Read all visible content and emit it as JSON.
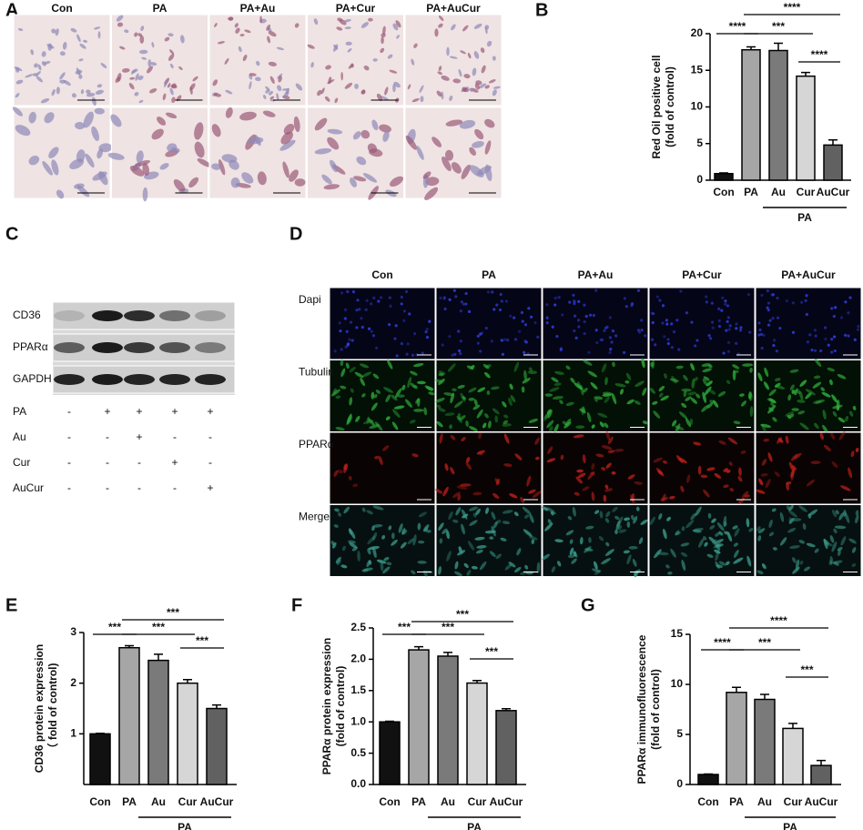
{
  "panels": {
    "A": {
      "letter": "A",
      "columns": [
        "Con",
        "PA",
        "PA+Au",
        "PA+Cur",
        "PA+AuCur"
      ]
    },
    "B": {
      "letter": "B"
    },
    "C": {
      "letter": "C",
      "proteins": [
        "CD36",
        "PPARα",
        "GAPDH"
      ],
      "treatments": [
        {
          "name": "PA",
          "marks": [
            "-",
            "+",
            "+",
            "+",
            "+"
          ]
        },
        {
          "name": "Au",
          "marks": [
            "-",
            "-",
            "+",
            "-",
            "-"
          ]
        },
        {
          "name": "Cur",
          "marks": [
            "-",
            "-",
            "-",
            "+",
            "-"
          ]
        },
        {
          "name": "AuCur",
          "marks": [
            "-",
            "-",
            "-",
            "-",
            "+"
          ]
        }
      ]
    },
    "D": {
      "letter": "D",
      "columns": [
        "Con",
        "PA",
        "PA+Au",
        "PA+Cur",
        "PA+AuCur"
      ],
      "rows": [
        "Dapi",
        "Tubulin",
        "PPARα",
        "Merge"
      ]
    },
    "E": {
      "letter": "E"
    },
    "F": {
      "letter": "F"
    },
    "G": {
      "letter": "G"
    }
  },
  "chart_data": [
    {
      "type": "bar",
      "ylabel": [
        "Red Oil positive cell",
        "(fold of control)"
      ],
      "categories": [
        "Con",
        "PA",
        "Au",
        "Cur",
        "AuCur"
      ],
      "values": [
        0.9,
        17.8,
        17.7,
        14.2,
        4.8
      ],
      "errors": [
        0.1,
        0.4,
        1.0,
        0.5,
        0.7
      ],
      "colors": [
        "#111111",
        "#a6a6a6",
        "#7a7a7a",
        "#d6d6d6",
        "#616161"
      ],
      "ylim": [
        0,
        20
      ],
      "yticks": [
        0,
        5,
        10,
        15,
        20
      ],
      "group_label": "PA",
      "significance": [
        "****",
        "***",
        "****",
        "****"
      ]
    },
    {
      "type": "bar",
      "ylabel": [
        "CD36 protein expression",
        "（ fold of control)"
      ],
      "categories": [
        "Con",
        "PA",
        "Au",
        "Cur",
        "AuCur"
      ],
      "values": [
        1,
        2.7,
        2.45,
        2.0,
        1.5
      ],
      "errors": [
        0.01,
        0.04,
        0.12,
        0.07,
        0.07
      ],
      "colors": [
        "#111111",
        "#a6a6a6",
        "#7a7a7a",
        "#d6d6d6",
        "#616161"
      ],
      "ylim": [
        0,
        3
      ],
      "yticks": [
        1,
        2,
        3
      ],
      "group_label": "PA",
      "significance": [
        "***",
        "***",
        "***",
        "***"
      ]
    },
    {
      "type": "bar",
      "ylabel": [
        "PPARα protein expression",
        "(fold of control)"
      ],
      "categories": [
        "Con",
        "PA",
        "Au",
        "Cur",
        "AuCur"
      ],
      "values": [
        1.0,
        2.15,
        2.05,
        1.62,
        1.18
      ],
      "errors": [
        0.01,
        0.05,
        0.06,
        0.04,
        0.03
      ],
      "colors": [
        "#111111",
        "#a6a6a6",
        "#7a7a7a",
        "#d6d6d6",
        "#616161"
      ],
      "ylim": [
        0,
        2.5
      ],
      "yticks": [
        {
          "value": 0,
          "label": "0.0"
        },
        0.5,
        {
          "value": 1,
          "label": "1.0"
        },
        1.5,
        {
          "value": 2,
          "label": "2.0"
        },
        2.5
      ],
      "group_label": "PA",
      "significance": [
        "***",
        "***",
        "***",
        "***"
      ]
    },
    {
      "type": "bar",
      "ylabel": [
        "PPARα immunofluorescence",
        "(fold of control)"
      ],
      "categories": [
        "Con",
        "PA",
        "Au",
        "Cur",
        "AuCur"
      ],
      "values": [
        1.0,
        9.2,
        8.5,
        5.6,
        1.9
      ],
      "errors": [
        0.05,
        0.5,
        0.5,
        0.5,
        0.5
      ],
      "colors": [
        "#111111",
        "#a6a6a6",
        "#7a7a7a",
        "#d6d6d6",
        "#616161"
      ],
      "ylim": [
        0,
        15
      ],
      "yticks": [
        0,
        5,
        10,
        15
      ],
      "group_label": "PA",
      "significance": [
        "****",
        "***",
        "****",
        "***"
      ]
    }
  ]
}
